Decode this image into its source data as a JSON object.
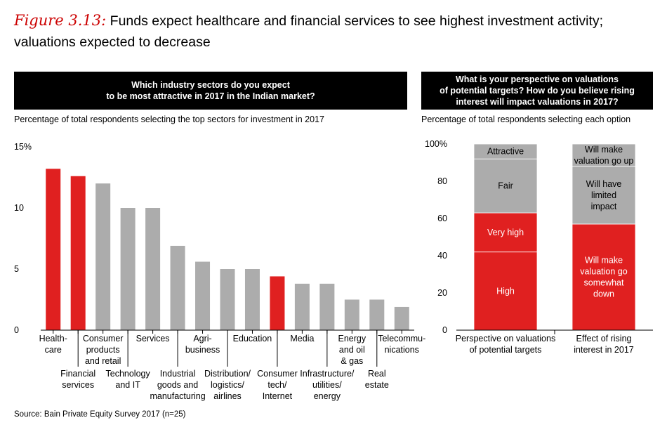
{
  "figure": {
    "label": "Figure 3.13:",
    "title": "Funds expect healthcare and financial services to see highest investment activity; valuations expected to decrease"
  },
  "left_panel": {
    "question": "Which industry sectors do you expect to be most attractive in 2017 in the Indian market?",
    "question_lines": [
      "Which industry sectors do you expect",
      "to be most attractive in 2017 in the Indian market?"
    ],
    "subtitle": "Percentage of total respondents selecting the top sectors for investment in 2017"
  },
  "right_panel": {
    "question": "What is your perspective on valuations of potential targets? How do you believe rising interest will impact valuations in 2017?",
    "question_lines": [
      "What is your perspective on valuations",
      "of potential targets? How do you believe rising",
      "interest will impact valuations in 2017?"
    ],
    "subtitle": "Percentage of total respondents selecting each option"
  },
  "source": "Source: Bain Private Equity Survey 2017 (n=25)",
  "colors": {
    "highlight": "#e02020",
    "neutral": "#acacac",
    "accent_title": "#cc0000"
  },
  "chart_data": [
    {
      "type": "bar",
      "categories": [
        "Health-care",
        "Financial services",
        "Consumer products and retail",
        "Technology and IT",
        "Services",
        "Industrial goods and manufacturing",
        "Agri-business",
        "Distribution/logistics/airlines",
        "Education",
        "Consumer tech/Internet",
        "Media",
        "Infrastructure/utilities/energy",
        "Energy and oil & gas",
        "Real estate",
        "Telecommunications"
      ],
      "category_label_lines": [
        [
          "Health-",
          "care"
        ],
        [
          "Financial",
          "services"
        ],
        [
          "Consumer",
          "products",
          "and retail"
        ],
        [
          "Technology",
          "and IT"
        ],
        [
          "Services"
        ],
        [
          "Industrial",
          "goods and",
          "manufacturing"
        ],
        [
          "Agri-",
          "business"
        ],
        [
          "Distribution/",
          "logistics/",
          "airlines"
        ],
        [
          "Education"
        ],
        [
          "Consumer",
          "tech/",
          "Internet"
        ],
        [
          "Media"
        ],
        [
          "Infrastructure/",
          "utilities/",
          "energy"
        ],
        [
          "Energy",
          "and oil",
          "& gas"
        ],
        [
          "Real",
          "estate"
        ],
        [
          "Telecommu-",
          "nications"
        ]
      ],
      "label_row": [
        0,
        1,
        0,
        1,
        0,
        1,
        0,
        1,
        0,
        1,
        0,
        1,
        0,
        1,
        0
      ],
      "values": [
        13.2,
        12.6,
        12.0,
        10.0,
        10.0,
        6.9,
        5.6,
        5.0,
        5.0,
        4.4,
        3.8,
        3.8,
        2.5,
        2.5,
        1.9
      ],
      "highlighted": [
        true,
        true,
        false,
        false,
        false,
        false,
        false,
        false,
        false,
        true,
        false,
        false,
        false,
        false,
        false
      ],
      "ylim": [
        0,
        15
      ],
      "yticks": [
        0,
        5,
        10,
        15
      ],
      "ytick_labels": [
        "0",
        "5",
        "10",
        "15%"
      ],
      "grid": false
    },
    {
      "type": "bar",
      "stacked": true,
      "categories": [
        "Perspective on valuations of potential targets",
        "Effect of rising interest in 2017"
      ],
      "category_label_lines": [
        [
          "Perspective on valuations",
          "of potential targets"
        ],
        [
          "Effect of rising",
          "interest in 2017"
        ]
      ],
      "stacks": [
        [
          {
            "name": "High",
            "value": 42,
            "color": "red",
            "label_lines": [
              "High"
            ]
          },
          {
            "name": "Very high",
            "value": 21,
            "color": "red",
            "label_lines": [
              "Very high"
            ]
          },
          {
            "name": "Fair",
            "value": 29,
            "color": "gray",
            "label_lines": [
              "Fair"
            ]
          },
          {
            "name": "Attractive",
            "value": 8,
            "color": "gray",
            "label_lines": [
              "Attractive"
            ]
          }
        ],
        [
          {
            "name": "Will make valuation go somewhat down",
            "value": 57,
            "color": "red",
            "label_lines": [
              "Will make",
              "valuation go",
              "somewhat",
              "down"
            ]
          },
          {
            "name": "Will have limited impact",
            "value": 31,
            "color": "gray",
            "label_lines": [
              "Will have",
              "limited",
              "impact"
            ]
          },
          {
            "name": "Will make valuation go up",
            "value": 12,
            "color": "gray",
            "label_lines": [
              "Will make",
              "valuation go up"
            ]
          }
        ]
      ],
      "ylim": [
        0,
        100
      ],
      "yticks": [
        0,
        20,
        40,
        60,
        80,
        100
      ],
      "ytick_labels": [
        "0",
        "20",
        "40",
        "60",
        "80",
        "100%"
      ],
      "grid": false
    }
  ]
}
